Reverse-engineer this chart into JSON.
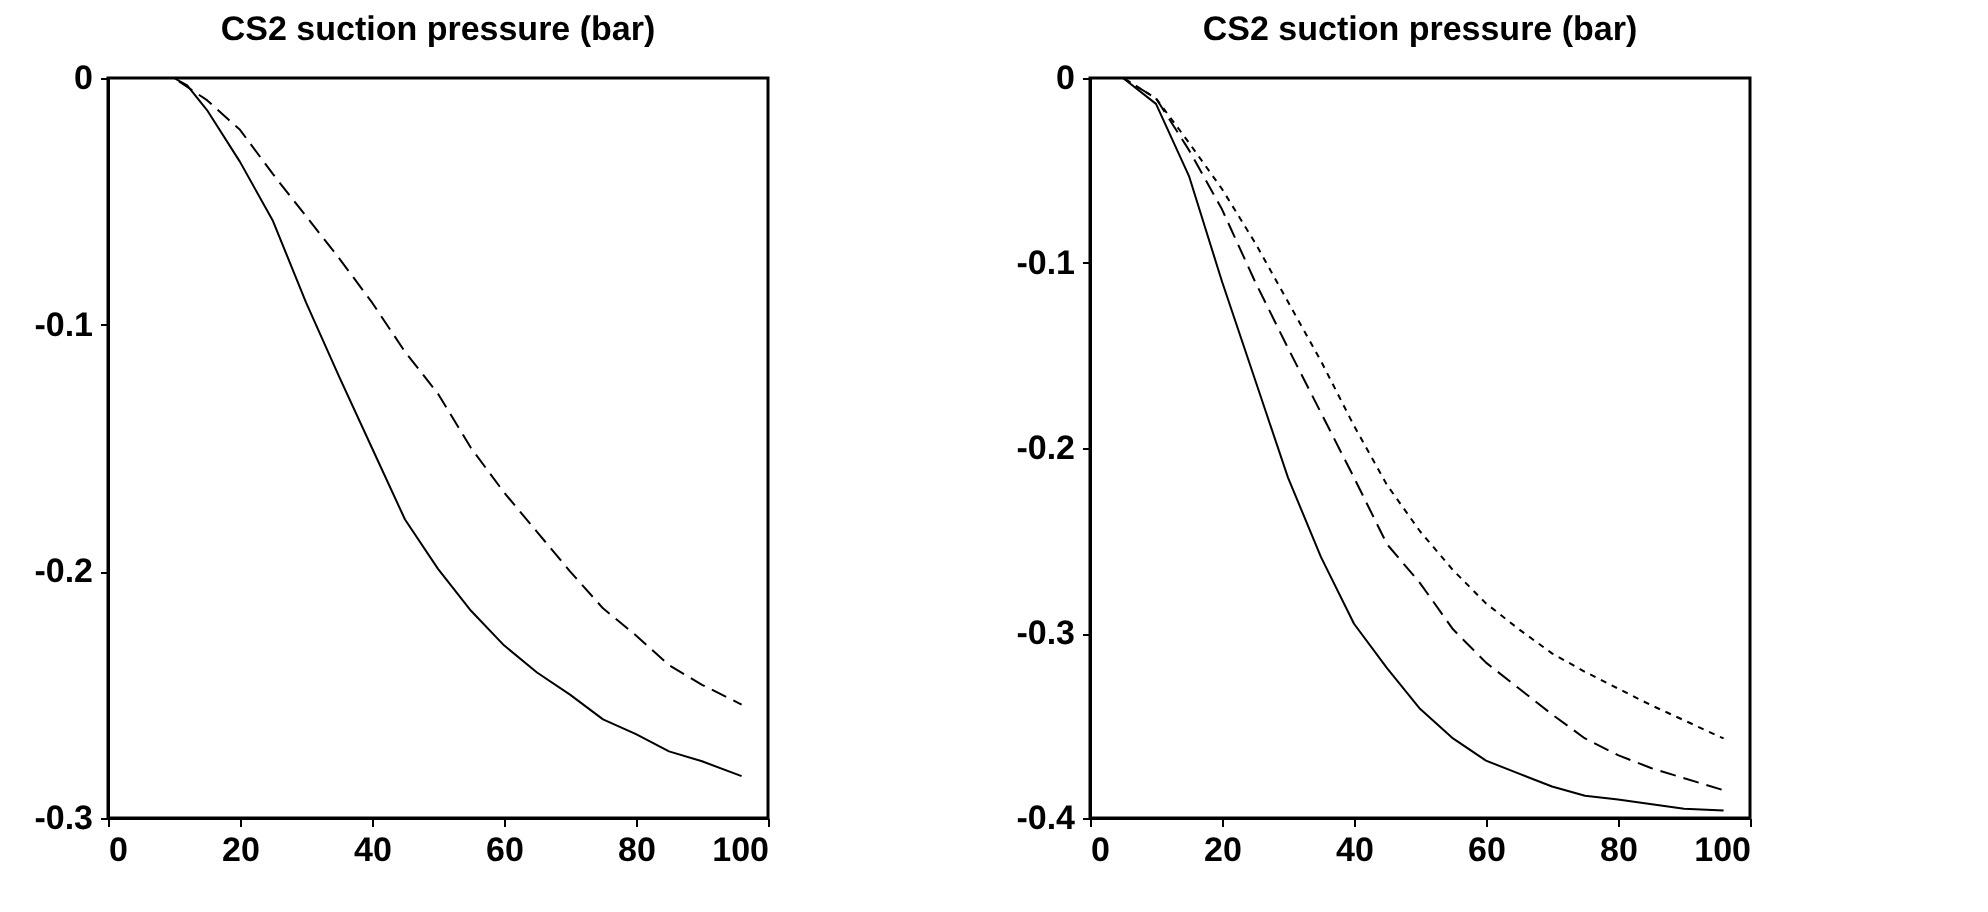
{
  "chart_data": [
    {
      "type": "line",
      "title": "CS2 suction pressure (bar)",
      "xlim": [
        0,
        100
      ],
      "ylim": [
        -0.3,
        0
      ],
      "xticks": [
        0,
        20,
        40,
        60,
        80,
        100
      ],
      "yticks": [
        -0.3,
        -0.2,
        -0.1,
        0
      ],
      "grid": false,
      "series": [
        {
          "color": "#000000",
          "line_style": "solid",
          "x": [
            0,
            5,
            10,
            12,
            15,
            20,
            25,
            30,
            35,
            40,
            45,
            50,
            55,
            60,
            65,
            70,
            75,
            80,
            85,
            90,
            96
          ],
          "values": [
            0,
            0,
            0,
            -0.003,
            -0.013,
            -0.034,
            -0.058,
            -0.091,
            -0.121,
            -0.15,
            -0.179,
            -0.199,
            -0.216,
            -0.23,
            -0.241,
            -0.25,
            -0.26,
            -0.266,
            -0.273,
            -0.277,
            -0.283
          ]
        },
        {
          "color": "#000000",
          "line_style": "dashed",
          "x": [
            0,
            5,
            10,
            15,
            20,
            25,
            30,
            35,
            40,
            45,
            50,
            55,
            60,
            65,
            70,
            75,
            80,
            85,
            90,
            96
          ],
          "values": [
            0,
            0,
            0,
            -0.009,
            -0.021,
            -0.039,
            -0.056,
            -0.073,
            -0.091,
            -0.111,
            -0.128,
            -0.15,
            -0.168,
            -0.184,
            -0.2,
            -0.215,
            -0.226,
            -0.238,
            -0.246,
            -0.254
          ]
        }
      ]
    },
    {
      "type": "line",
      "title": "CS2 suction pressure (bar)",
      "xlim": [
        0,
        100
      ],
      "ylim": [
        -0.4,
        0
      ],
      "xticks": [
        0,
        20,
        40,
        60,
        80,
        100
      ],
      "yticks": [
        -0.4,
        -0.3,
        -0.2,
        -0.1,
        0
      ],
      "grid": false,
      "series": [
        {
          "color": "#000000",
          "line_style": "solid",
          "x": [
            0,
            5,
            10,
            15,
            20,
            25,
            30,
            35,
            40,
            45,
            50,
            55,
            60,
            65,
            70,
            75,
            80,
            90,
            96
          ],
          "values": [
            0,
            0,
            -0.014,
            -0.053,
            -0.11,
            -0.163,
            -0.216,
            -0.259,
            -0.295,
            -0.319,
            -0.341,
            -0.357,
            -0.369,
            -0.376,
            -0.383,
            -0.388,
            -0.39,
            -0.395,
            -0.396
          ]
        },
        {
          "color": "#000000",
          "line_style": "dashed",
          "x": [
            0,
            5,
            10,
            15,
            20,
            25,
            30,
            35,
            40,
            45,
            50,
            55,
            60,
            65,
            70,
            75,
            80,
            85,
            96
          ],
          "values": [
            0,
            0,
            -0.011,
            -0.039,
            -0.071,
            -0.11,
            -0.146,
            -0.181,
            -0.216,
            -0.252,
            -0.273,
            -0.298,
            -0.316,
            -0.33,
            -0.344,
            -0.357,
            -0.366,
            -0.373,
            -0.385
          ]
        },
        {
          "color": "#000000",
          "line_style": "dotted",
          "x": [
            0,
            5,
            10,
            15,
            20,
            25,
            30,
            35,
            40,
            45,
            50,
            55,
            60,
            65,
            70,
            75,
            80,
            85,
            96
          ],
          "values": [
            0,
            0,
            -0.011,
            -0.035,
            -0.06,
            -0.089,
            -0.121,
            -0.153,
            -0.188,
            -0.22,
            -0.245,
            -0.266,
            -0.284,
            -0.298,
            -0.311,
            -0.321,
            -0.33,
            -0.339,
            -0.357
          ]
        }
      ]
    }
  ]
}
